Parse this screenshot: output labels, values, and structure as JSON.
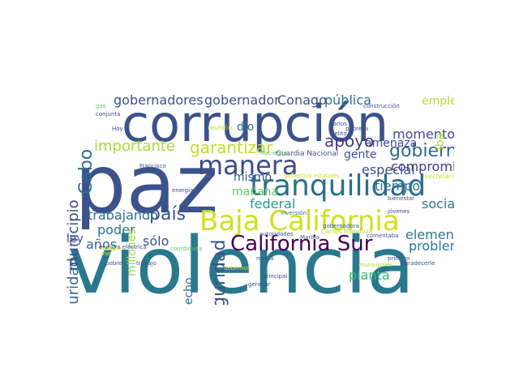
{
  "wordcloud": {
    "words": [
      {
        "text": "violencia",
        "color": "#2a788e"
      },
      {
        "text": "paz",
        "color": "#3b528b"
      },
      {
        "text": "corrupción",
        "color": "#3b528b"
      },
      {
        "text": "tranquilidad",
        "color": "#2c6e8e"
      },
      {
        "text": "Baja California",
        "color": "#d0e11c"
      },
      {
        "text": "manera",
        "color": "#3e4a89"
      },
      {
        "text": "California Sur",
        "color": "#440154"
      },
      {
        "text": "seguridad",
        "color": "#3b528b"
      },
      {
        "text": "gobierno",
        "color": "#31688e"
      },
      {
        "text": "país",
        "color": "#3b528b"
      },
      {
        "text": "Cabo",
        "color": "#2f6c8e"
      },
      {
        "text": "apoyo",
        "color": "#443983"
      },
      {
        "text": "garantizar",
        "color": "#bddf26"
      },
      {
        "text": "importante",
        "color": "#a5db36"
      },
      {
        "text": "inseguridad",
        "color": "#31688e"
      },
      {
        "text": "municipio",
        "color": "#3e4989"
      },
      {
        "text": "gobernadores",
        "color": "#3b528b"
      },
      {
        "text": "gobernador",
        "color": "#3b528b"
      },
      {
        "text": "Conago",
        "color": "#3b528b"
      },
      {
        "text": "pública",
        "color": "#2c728e"
      },
      {
        "text": "compromiso",
        "color": "#453781"
      },
      {
        "text": "momento",
        "color": "#3e4a89"
      },
      {
        "text": "especial",
        "color": "#3b528b"
      },
      {
        "text": "trabajando",
        "color": "#2c728e"
      },
      {
        "text": "poder",
        "color": "#2c728e"
      },
      {
        "text": "federal",
        "color": "#1f9e89"
      },
      {
        "text": "social",
        "color": "#2a788e"
      },
      {
        "text": "tiempo",
        "color": "#2c728e"
      },
      {
        "text": "mismo",
        "color": "#3b528b"
      },
      {
        "text": "mañana",
        "color": "#5ec962"
      },
      {
        "text": "millones",
        "color": "#a0da39"
      },
      {
        "text": "sólo",
        "color": "#3b528b"
      },
      {
        "text": "años",
        "color": "#31688e"
      },
      {
        "text": "planta",
        "color": "#35b779"
      },
      {
        "text": "elementos",
        "color": "#2a788e"
      },
      {
        "text": "problema",
        "color": "#2a788e"
      },
      {
        "text": "empleo",
        "color": "#b5de2b"
      },
      {
        "text": "gente",
        "color": "#3b528b"
      },
      {
        "text": "amenaza",
        "color": "#3e4989"
      },
      {
        "text": "hecho",
        "color": "#31688e"
      },
      {
        "text": "dio",
        "color": "#2c728e"
      },
      {
        "text": "ley",
        "color": "#3b528b"
      },
      {
        "text": "iba",
        "color": "#bddf26"
      },
      {
        "text": "Guardia Nacional",
        "color": "#3b528b"
      },
      {
        "text": "Francisco",
        "color": "#3b528b"
      },
      {
        "text": "energía",
        "color": "#3e4a89"
      },
      {
        "text": "Hoy",
        "color": "#3b528b"
      },
      {
        "text": "gas",
        "color": "#5ec962"
      },
      {
        "text": "conjunta",
        "color": "#3b528b"
      },
      {
        "text": "construcción",
        "color": "#3b528b"
      },
      {
        "text": "Carlos",
        "color": "#3b528b"
      },
      {
        "text": "pobreza",
        "color": "#3b528b"
      },
      {
        "text": "delito",
        "color": "#3b528b"
      },
      {
        "text": "reunión",
        "color": "#b5de2b"
      },
      {
        "text": "haciendo",
        "color": "#5ec962"
      },
      {
        "text": "gobiernos estatales",
        "color": "#d0e11c"
      },
      {
        "text": "inversión",
        "color": "#2a788e"
      },
      {
        "text": "bienestar",
        "color": "#3b528b"
      },
      {
        "text": "gobernadora",
        "color": "#3b528b"
      },
      {
        "text": "Carlos Mendoza",
        "color": "#b5de2b"
      },
      {
        "text": "autoridades",
        "color": "#3b528b"
      },
      {
        "text": "Marina",
        "color": "#3b528b"
      },
      {
        "text": "comentaba",
        "color": "#3b528b"
      },
      {
        "text": "energía eléctrica",
        "color": "#3b528b"
      },
      {
        "text": "nunca",
        "color": "#3b528b"
      },
      {
        "text": "pobre",
        "color": "#3b528b"
      },
      {
        "text": "trabajo",
        "color": "#3b528b"
      },
      {
        "text": "municipales",
        "color": "#a0da39"
      },
      {
        "text": "Agradecerle",
        "color": "#3b528b"
      },
      {
        "text": "principal",
        "color": "#3b528b"
      },
      {
        "text": "generar",
        "color": "#3b528b"
      },
      {
        "text": "jóvenes",
        "color": "#3b528b"
      },
      {
        "text": "coordinada",
        "color": "#5ec962"
      },
      {
        "text": "secretaria",
        "color": "#d0e11c"
      },
      {
        "text": "primero",
        "color": "#3b528b"
      },
      {
        "text": "materia",
        "color": "#d0e11c"
      },
      {
        "text": "mal",
        "color": "#d0e11c"
      },
      {
        "text": "debemos",
        "color": "#d0e11c"
      }
    ]
  }
}
